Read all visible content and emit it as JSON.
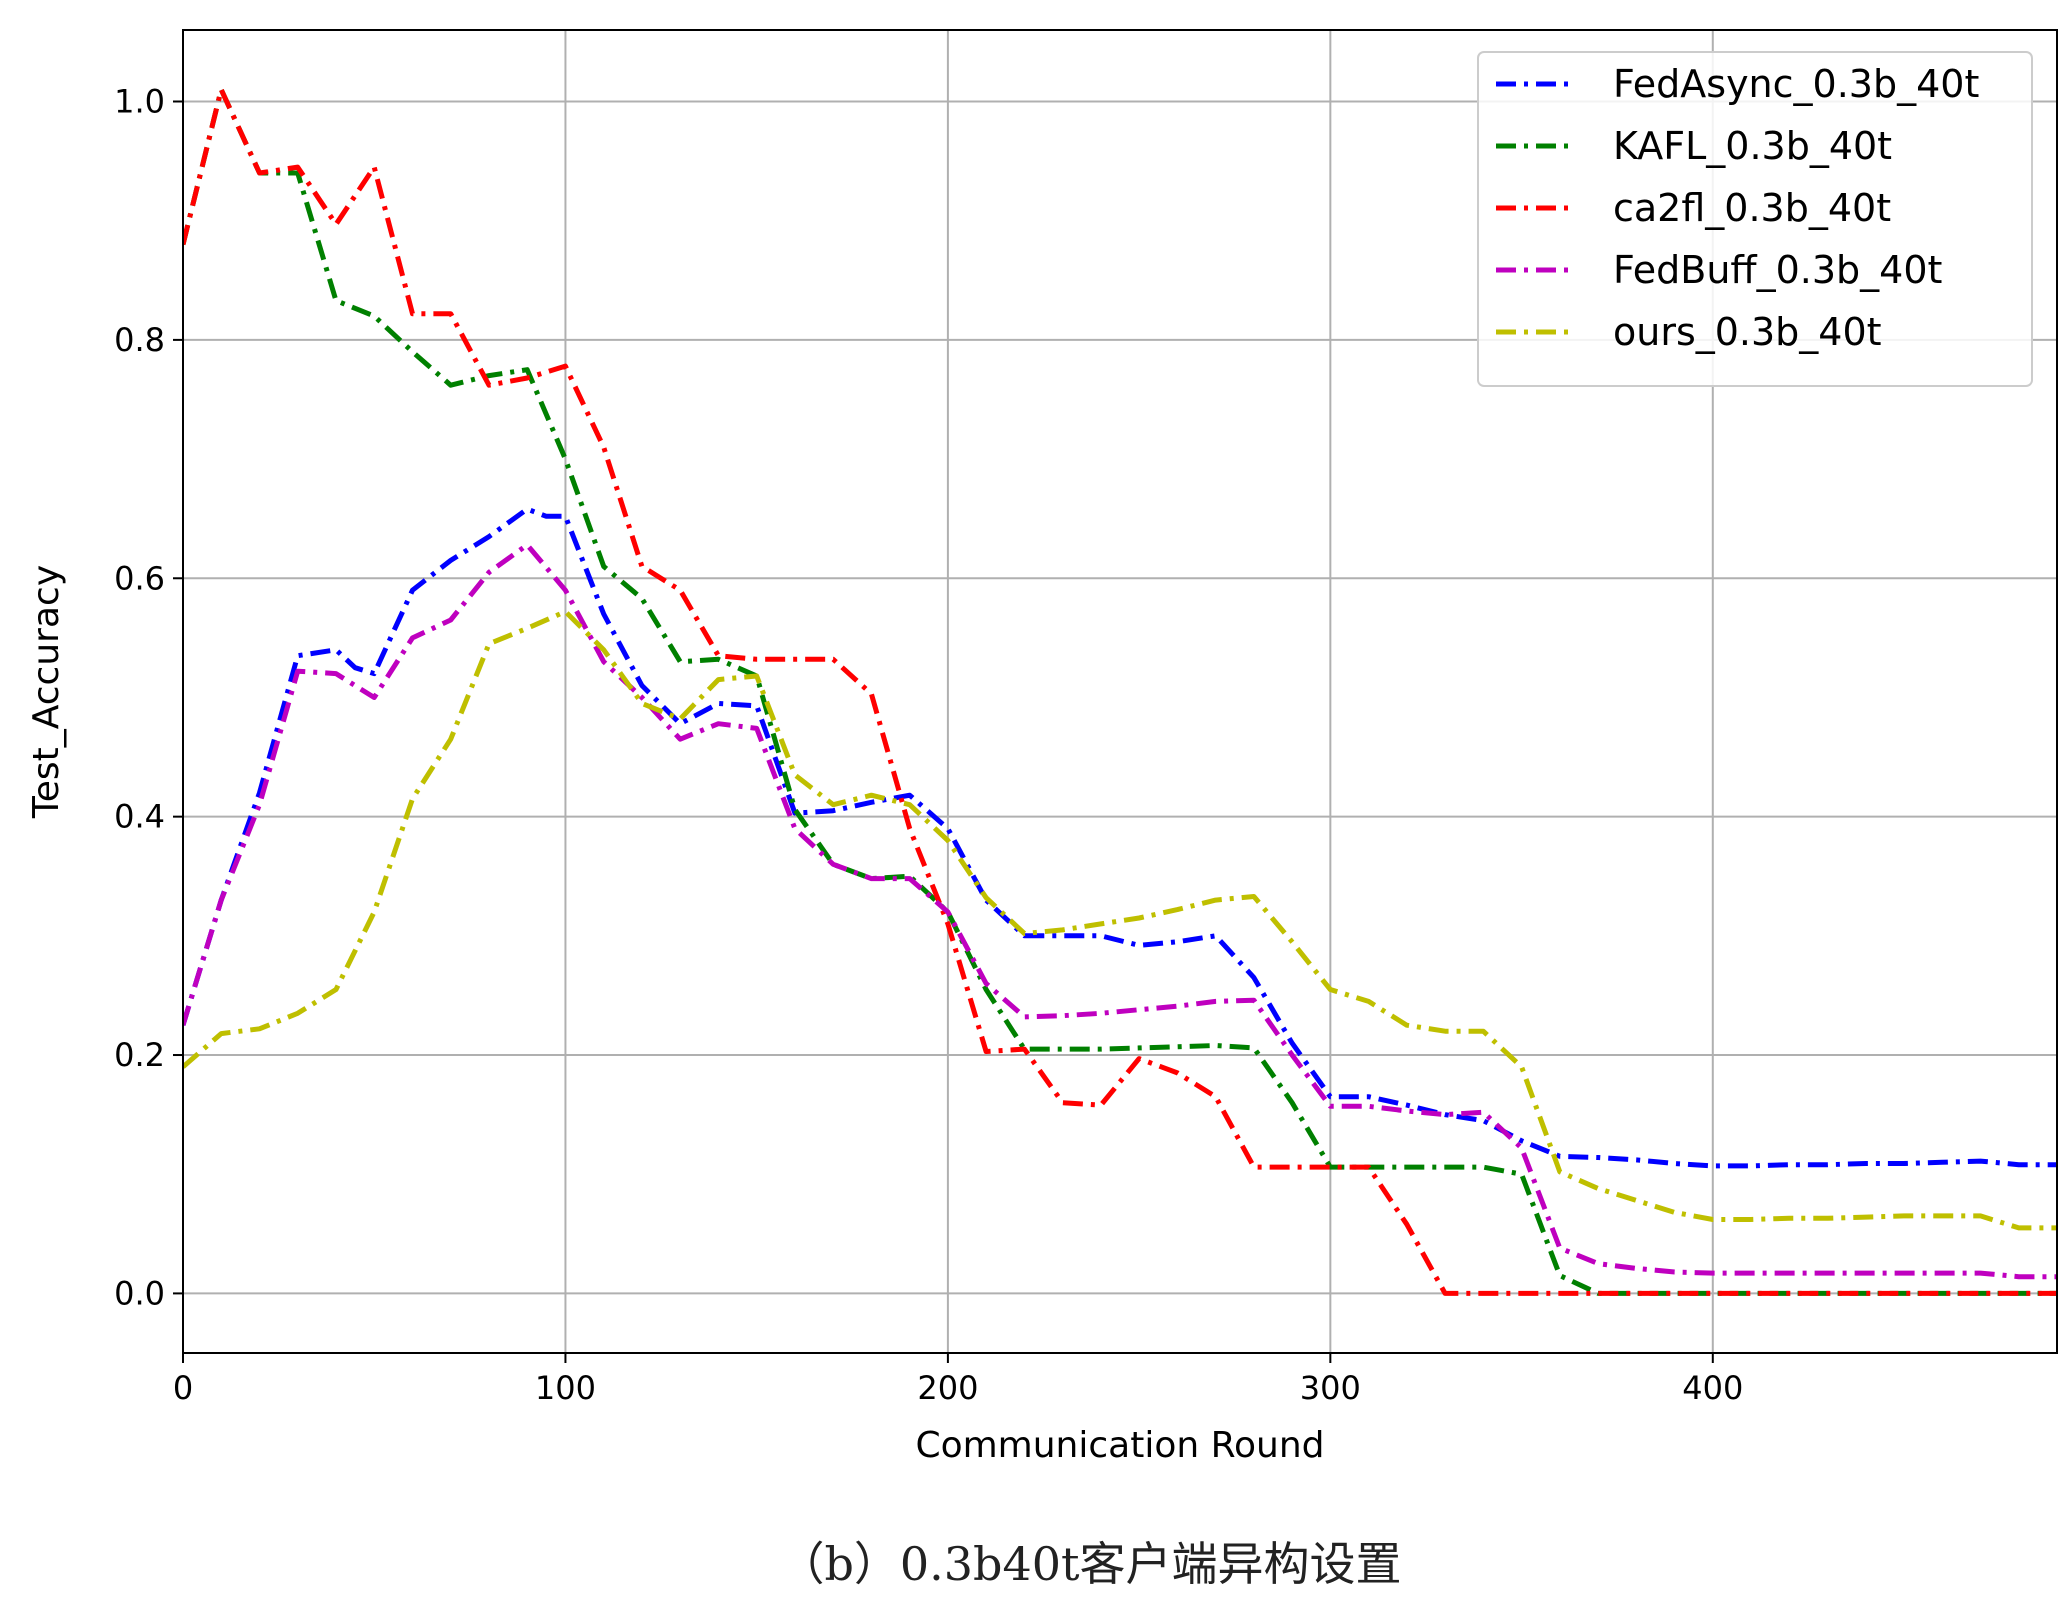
{
  "caption": "（b）0.3b40t客户端异构设置",
  "chart_data": {
    "type": "line",
    "title": "",
    "xlabel": "Communication Round",
    "ylabel": "Test_Accuracy",
    "xlim": [
      0,
      490
    ],
    "ylim": [
      -0.05,
      1.06
    ],
    "xticks": [
      0,
      100,
      200,
      300,
      400
    ],
    "yticks": [
      0.0,
      0.2,
      0.4,
      0.6,
      0.8,
      1.0
    ],
    "xtick_labels": [
      "0",
      "100",
      "200",
      "300",
      "400"
    ],
    "ytick_labels": [
      "0.0",
      "0.2",
      "0.4",
      "0.6",
      "0.8",
      "1.0"
    ],
    "grid": true,
    "legend_position": "top-right",
    "series": [
      {
        "name": "FedAsync_0.3b_40t",
        "color": "#0000ff",
        "x": [
          0,
          10,
          20,
          30,
          40,
          45,
          50,
          60,
          70,
          80,
          90,
          95,
          100,
          110,
          120,
          130,
          140,
          150,
          160,
          170,
          180,
          190,
          200,
          210,
          220,
          230,
          240,
          250,
          260,
          270,
          280,
          290,
          300,
          310,
          320,
          330,
          340,
          350,
          360,
          370,
          380,
          390,
          400,
          410,
          420,
          430,
          440,
          450,
          460,
          470,
          480,
          490
        ],
        "y": [
          0.225,
          0.33,
          0.42,
          0.535,
          0.54,
          0.525,
          0.52,
          0.59,
          0.615,
          0.635,
          0.658,
          0.652,
          0.652,
          0.57,
          0.51,
          0.478,
          0.495,
          0.493,
          0.403,
          0.405,
          0.412,
          0.418,
          0.39,
          0.33,
          0.3,
          0.3,
          0.3,
          0.292,
          0.295,
          0.3,
          0.265,
          0.21,
          0.165,
          0.165,
          0.158,
          0.15,
          0.145,
          0.128,
          0.115,
          0.114,
          0.112,
          0.109,
          0.107,
          0.107,
          0.108,
          0.108,
          0.109,
          0.109,
          0.11,
          0.111,
          0.108,
          0.108
        ]
      },
      {
        "name": "KAFL_0.3b_40t",
        "color": "#008000",
        "x": [
          0,
          10,
          20,
          30,
          40,
          50,
          60,
          70,
          80,
          90,
          100,
          110,
          120,
          130,
          140,
          150,
          160,
          170,
          180,
          190,
          200,
          210,
          220,
          230,
          240,
          250,
          260,
          270,
          280,
          290,
          300,
          310,
          320,
          330,
          340,
          350,
          360,
          370,
          380,
          390,
          400,
          410,
          420,
          430,
          440,
          450,
          460,
          470,
          480,
          490
        ],
        "y": [
          0.88,
          1.01,
          0.94,
          0.94,
          0.833,
          0.82,
          0.79,
          0.762,
          0.77,
          0.775,
          0.7,
          0.61,
          0.583,
          0.53,
          0.532,
          0.518,
          0.406,
          0.36,
          0.348,
          0.35,
          0.32,
          0.255,
          0.205,
          0.205,
          0.205,
          0.206,
          0.207,
          0.208,
          0.206,
          0.16,
          0.106,
          0.106,
          0.106,
          0.106,
          0.106,
          0.1,
          0.015,
          0,
          0,
          0,
          0,
          0,
          0,
          0,
          0,
          0,
          0,
          0,
          0,
          0
        ]
      },
      {
        "name": "ca2fl_0.3b_40t",
        "color": "#ff0000",
        "x": [
          0,
          10,
          20,
          30,
          40,
          50,
          60,
          70,
          80,
          90,
          100,
          110,
          120,
          130,
          140,
          150,
          160,
          170,
          180,
          190,
          200,
          210,
          220,
          230,
          240,
          250,
          260,
          270,
          280,
          290,
          300,
          310,
          320,
          330,
          340,
          350,
          360,
          370,
          380,
          390,
          400,
          410,
          420,
          430,
          440,
          450,
          460,
          470,
          480,
          490
        ],
        "y": [
          0.88,
          1.01,
          0.94,
          0.945,
          0.897,
          0.945,
          0.822,
          0.822,
          0.762,
          0.768,
          0.778,
          0.71,
          0.61,
          0.59,
          0.535,
          0.532,
          0.532,
          0.532,
          0.503,
          0.39,
          0.31,
          0.203,
          0.205,
          0.16,
          0.158,
          0.197,
          0.185,
          0.165,
          0.106,
          0.106,
          0.106,
          0.106,
          0.058,
          0,
          0,
          0,
          0,
          0,
          0,
          0,
          0,
          0,
          0,
          0,
          0,
          0,
          0,
          0,
          0,
          0
        ]
      },
      {
        "name": "FedBuff_0.3b_40t",
        "color": "#bf00bf",
        "x": [
          0,
          10,
          20,
          30,
          40,
          50,
          60,
          70,
          80,
          90,
          100,
          110,
          120,
          130,
          140,
          150,
          160,
          170,
          180,
          190,
          200,
          210,
          220,
          230,
          240,
          250,
          260,
          270,
          280,
          290,
          300,
          310,
          320,
          330,
          340,
          350,
          360,
          370,
          380,
          390,
          400,
          410,
          420,
          430,
          440,
          450,
          460,
          470,
          480,
          490
        ],
        "y": [
          0.225,
          0.33,
          0.41,
          0.522,
          0.52,
          0.5,
          0.55,
          0.565,
          0.605,
          0.628,
          0.59,
          0.53,
          0.5,
          0.465,
          0.478,
          0.474,
          0.39,
          0.36,
          0.348,
          0.348,
          0.32,
          0.26,
          0.232,
          0.233,
          0.235,
          0.238,
          0.241,
          0.245,
          0.246,
          0.2,
          0.157,
          0.157,
          0.153,
          0.15,
          0.152,
          0.122,
          0.038,
          0.025,
          0.021,
          0.018,
          0.017,
          0.017,
          0.017,
          0.017,
          0.017,
          0.017,
          0.017,
          0.017,
          0.014,
          0.014
        ]
      },
      {
        "name": "ours_0.3b_40t",
        "color": "#bfbf00",
        "x": [
          0,
          10,
          20,
          30,
          40,
          50,
          60,
          70,
          80,
          90,
          100,
          110,
          120,
          130,
          140,
          150,
          160,
          170,
          180,
          190,
          200,
          210,
          220,
          230,
          240,
          250,
          260,
          270,
          280,
          290,
          300,
          310,
          320,
          330,
          340,
          350,
          360,
          370,
          380,
          390,
          400,
          410,
          420,
          430,
          440,
          450,
          460,
          470,
          480,
          490
        ],
        "y": [
          0.19,
          0.218,
          0.222,
          0.235,
          0.255,
          0.32,
          0.415,
          0.465,
          0.545,
          0.558,
          0.572,
          0.54,
          0.495,
          0.482,
          0.515,
          0.518,
          0.435,
          0.41,
          0.418,
          0.41,
          0.38,
          0.332,
          0.302,
          0.305,
          0.31,
          0.315,
          0.322,
          0.33,
          0.333,
          0.295,
          0.255,
          0.245,
          0.225,
          0.22,
          0.22,
          0.19,
          0.102,
          0.088,
          0.078,
          0.068,
          0.062,
          0.062,
          0.063,
          0.063,
          0.064,
          0.065,
          0.065,
          0.065,
          0.055,
          0.055
        ]
      }
    ]
  }
}
